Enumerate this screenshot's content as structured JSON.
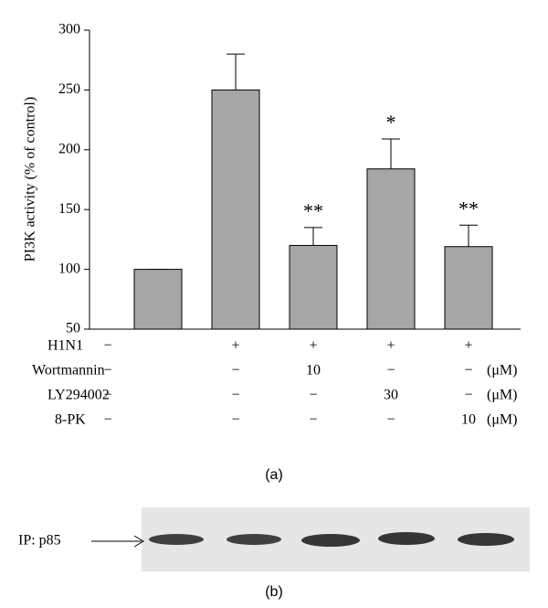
{
  "chart_data": {
    "type": "bar",
    "ylabel": "PI3K activity (% of control)",
    "ylim": [
      50,
      300
    ],
    "yticks": [
      50,
      100,
      150,
      200,
      250,
      300
    ],
    "categories": [
      null,
      null,
      null,
      null,
      null
    ],
    "series": [
      {
        "name": null,
        "color": "#a6a6a6",
        "values": [
          100,
          250,
          120,
          184,
          119
        ],
        "errors": [
          0,
          30,
          15,
          25,
          18
        ]
      }
    ],
    "annotations": [
      null,
      null,
      "**",
      "*",
      "**"
    ],
    "treatments": [
      {
        "label": "H1N1",
        "values": [
          "−",
          "+",
          "+",
          "+",
          "+"
        ],
        "unit": null
      },
      {
        "label": "Wortmannin",
        "values": [
          "−",
          "−",
          "10",
          "−",
          "−"
        ],
        "unit": "(μM)"
      },
      {
        "label": "LY294002",
        "values": [
          "−",
          "−",
          "−",
          "30",
          "−"
        ],
        "unit": "(μM)"
      },
      {
        "label": "8-PK",
        "values": [
          "−",
          "−",
          "−",
          "−",
          "10"
        ],
        "unit": "(μM)"
      }
    ],
    "panel_a": "(a)",
    "blot_label": "IP: p85",
    "panel_b": "(b)"
  }
}
